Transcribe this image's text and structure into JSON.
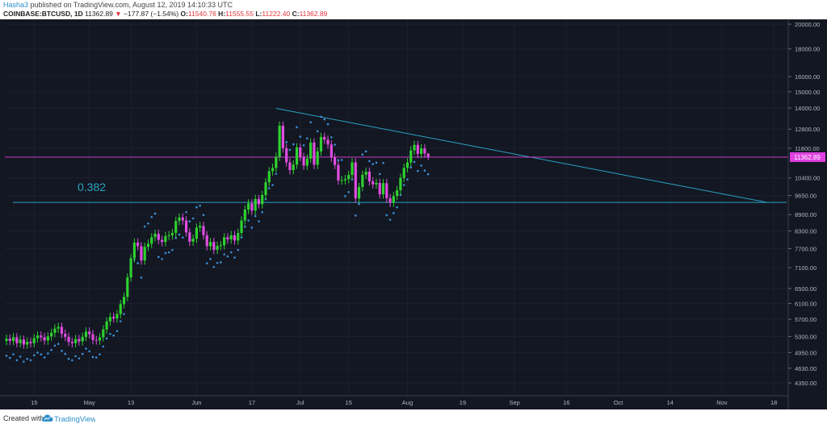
{
  "header": {
    "username": "Hasha3",
    "published_text": "published on TradingView.com, August 12, 2019 14:10:33 UTC",
    "symbol": "COINBASE:BTCUSD, 1D",
    "last_price": "11362.89",
    "change_arrow": "▼",
    "change": "−177.87 (−1.54%)",
    "o_label": "O:",
    "o_value": "11540.76",
    "h_label": "H:",
    "h_value": "11555.55",
    "l_label": "L:",
    "l_value": "11222.40",
    "c_label": "C:",
    "c_value": "11362.89"
  },
  "footer": {
    "created_with": "Created with",
    "brand": "TradingView"
  },
  "colors": {
    "background": "#131722",
    "bull": "#2ed12e",
    "bear": "#e04de0",
    "trendline": "#2aa3c4",
    "sar": "#3a8fd6",
    "price_tag": "#e040e0"
  },
  "chart_data": {
    "type": "candlestick",
    "symbol": "COINBASE:BTCUSD",
    "interval": "1D",
    "y_scale": "log",
    "ylim": [
      4100,
      20500
    ],
    "y_ticks": [
      "20000.00",
      "18000.00",
      "16000.00",
      "15000.00",
      "14000.00",
      "12800.00",
      "11800.00",
      "10400.00",
      "9650.00",
      "8900.00",
      "8300.00",
      "7700.00",
      "7100.00",
      "6500.00",
      "6100.00",
      "5700.00",
      "5300.00",
      "4950.00",
      "4630.00",
      "4350.00"
    ],
    "x_ticks": [
      "15",
      "May",
      "13",
      "Jun",
      "17",
      "Jul",
      "15",
      "Aug",
      "19",
      "Sep",
      "16",
      "Oct",
      "14",
      "Nov",
      "18"
    ],
    "fib_label": "0.382",
    "fib_level": 9370,
    "last_price_tag": "11362.89",
    "candles_close": [
      5250,
      5200,
      5280,
      5150,
      5230,
      5120,
      5180,
      5150,
      5260,
      5320,
      5280,
      5210,
      5300,
      5380,
      5480,
      5520,
      5360,
      5290,
      5180,
      5150,
      5240,
      5190,
      5290,
      5410,
      5350,
      5220,
      5210,
      5280,
      5460,
      5650,
      5760,
      5720,
      5830,
      6080,
      6270,
      6810,
      7390,
      7900,
      7780,
      7320,
      7760,
      7860,
      8080,
      8200,
      7990,
      7920,
      8120,
      8150,
      8230,
      8660,
      8790,
      8680,
      8250,
      7930,
      8030,
      8420,
      8480,
      8150,
      7780,
      7920,
      7660,
      7790,
      7810,
      8080,
      8010,
      8150,
      7970,
      8230,
      8680,
      9090,
      9330,
      9050,
      9510,
      9300,
      9670,
      10210,
      10700,
      10850,
      11380,
      12990,
      11800,
      11110,
      10750,
      11010,
      11840,
      11370,
      10960,
      11290,
      12090,
      11000,
      11640,
      12380,
      12240,
      11990,
      11340,
      10990,
      10290,
      10300,
      10350,
      10530,
      11110,
      9530,
      10010,
      10540,
      10680,
      10250,
      10120,
      10180,
      9700,
      10170,
      9540,
      9360,
      9630,
      9870,
      10400,
      10850,
      11110,
      11690,
      11970,
      11520,
      11790,
      11540,
      11362.89
    ],
    "open_value": 11540.76,
    "high_value": 11555.55,
    "low_value": 11222.4,
    "close_value": 11362.89
  }
}
